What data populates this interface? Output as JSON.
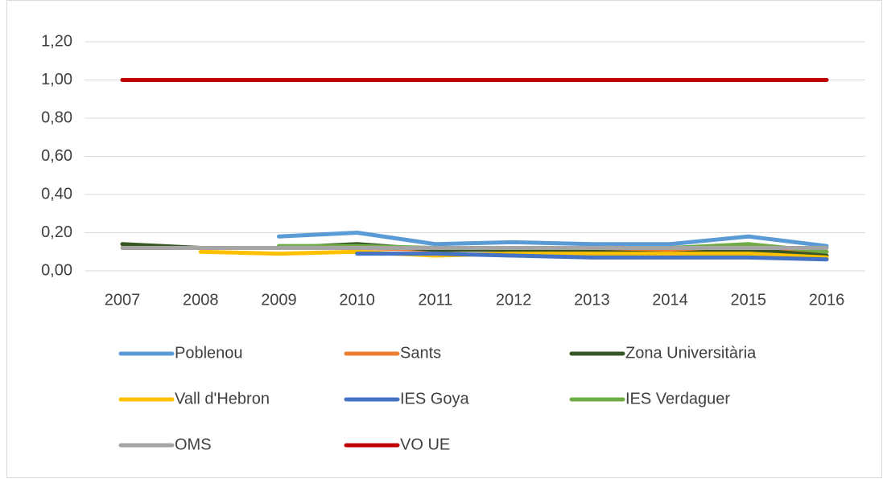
{
  "chart_data": {
    "type": "line",
    "categories": [
      "2007",
      "2008",
      "2009",
      "2010",
      "2011",
      "2012",
      "2013",
      "2014",
      "2015",
      "2016"
    ],
    "series": [
      {
        "name": "Poblenou",
        "color": "#5b9bd5",
        "values": [
          null,
          null,
          0.18,
          0.2,
          0.14,
          0.15,
          0.14,
          0.14,
          0.18,
          0.13
        ]
      },
      {
        "name": "Sants",
        "color": "#ed7d31",
        "values": [
          null,
          null,
          0.12,
          0.12,
          0.11,
          0.11,
          0.11,
          0.11,
          0.11,
          0.1
        ]
      },
      {
        "name": "Zona Universitària",
        "color": "#375623",
        "values": [
          0.14,
          0.12,
          0.12,
          0.14,
          0.11,
          0.11,
          0.1,
          0.09,
          0.11,
          0.08
        ]
      },
      {
        "name": "Vall d'Hebron",
        "color": "#ffc000",
        "values": [
          null,
          0.1,
          0.09,
          0.1,
          0.08,
          0.09,
          0.09,
          0.09,
          0.09,
          0.07
        ]
      },
      {
        "name": "IES Goya",
        "color": "#4472c4",
        "values": [
          null,
          null,
          null,
          0.09,
          0.09,
          0.08,
          0.07,
          0.07,
          0.07,
          0.06
        ]
      },
      {
        "name": "IES Verdaguer",
        "color": "#70ad47",
        "values": [
          null,
          null,
          0.13,
          0.13,
          0.12,
          0.12,
          0.12,
          0.12,
          0.14,
          0.1
        ]
      },
      {
        "name": "OMS",
        "color": "#a5a5a5",
        "values": [
          0.12,
          0.12,
          0.12,
          0.12,
          0.12,
          0.12,
          0.12,
          0.12,
          0.12,
          0.12
        ]
      },
      {
        "name": "VO UE",
        "color": "#c00000",
        "values": [
          1.0,
          1.0,
          1.0,
          1.0,
          1.0,
          1.0,
          1.0,
          1.0,
          1.0,
          1.0
        ]
      }
    ],
    "ylim": [
      0,
      1.2
    ],
    "yticks": [
      {
        "value": 0,
        "label": "0,00"
      },
      {
        "value": 0.2,
        "label": "0,20"
      },
      {
        "value": 0.4,
        "label": "0,40"
      },
      {
        "value": 0.6,
        "label": "0,60"
      },
      {
        "value": 0.8,
        "label": "0,80"
      },
      {
        "value": 1.0,
        "label": "1,00"
      },
      {
        "value": 1.2,
        "label": "1,20"
      }
    ],
    "grid": true
  }
}
